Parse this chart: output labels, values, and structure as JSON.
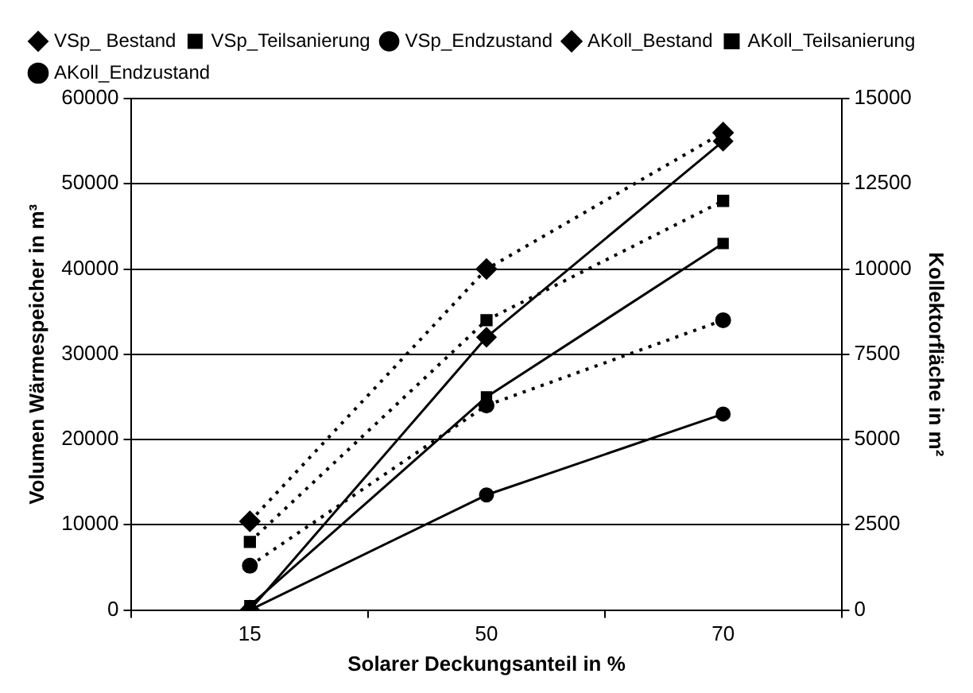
{
  "chart_data": {
    "type": "line",
    "xlabel": "Solarer Deckungsanteil in %",
    "ylabel": "Volumen Wärmespeicher in m³",
    "y2label": "Kollektorfläche in m²",
    "categories": [
      "15",
      "50",
      "70"
    ],
    "ylim": [
      0,
      60000
    ],
    "yticks": [
      0,
      10000,
      20000,
      30000,
      40000,
      50000,
      60000
    ],
    "y2lim": [
      0,
      15000
    ],
    "y2ticks": [
      0,
      2500,
      5000,
      7500,
      10000,
      12500,
      15000
    ],
    "grid": "y",
    "legend": "top left",
    "series": [
      {
        "name": "VSp_ Bestand",
        "color": "#000000",
        "values": [
          0,
          32000,
          55000
        ],
        "marker": "diamond",
        "line_style": "solid"
      },
      {
        "name": "VSp_Teilsanierung",
        "color": "#000000",
        "values": [
          500,
          25000,
          43000
        ],
        "marker": "square",
        "line_style": "solid"
      },
      {
        "name": "VSp_Endzustand",
        "color": "#000000",
        "values": [
          0,
          13500,
          23000
        ],
        "marker": "circle",
        "line_style": "solid"
      },
      {
        "name": "AKoll_Bestand",
        "color": "#000000",
        "values": [
          2600,
          10000,
          14000
        ],
        "marker": "diamond",
        "line_style": "dotted",
        "axis": "y2"
      },
      {
        "name": "AKoll_Teilsanierung",
        "color": "#000000",
        "values": [
          2000,
          8500,
          12000
        ],
        "marker": "square",
        "line_style": "dotted",
        "axis": "y2"
      },
      {
        "name": "AKoll_Endzustand",
        "color": "#000000",
        "values": [
          1300,
          6000,
          8500
        ],
        "marker": "circle",
        "line_style": "dotted",
        "axis": "y2"
      }
    ]
  }
}
